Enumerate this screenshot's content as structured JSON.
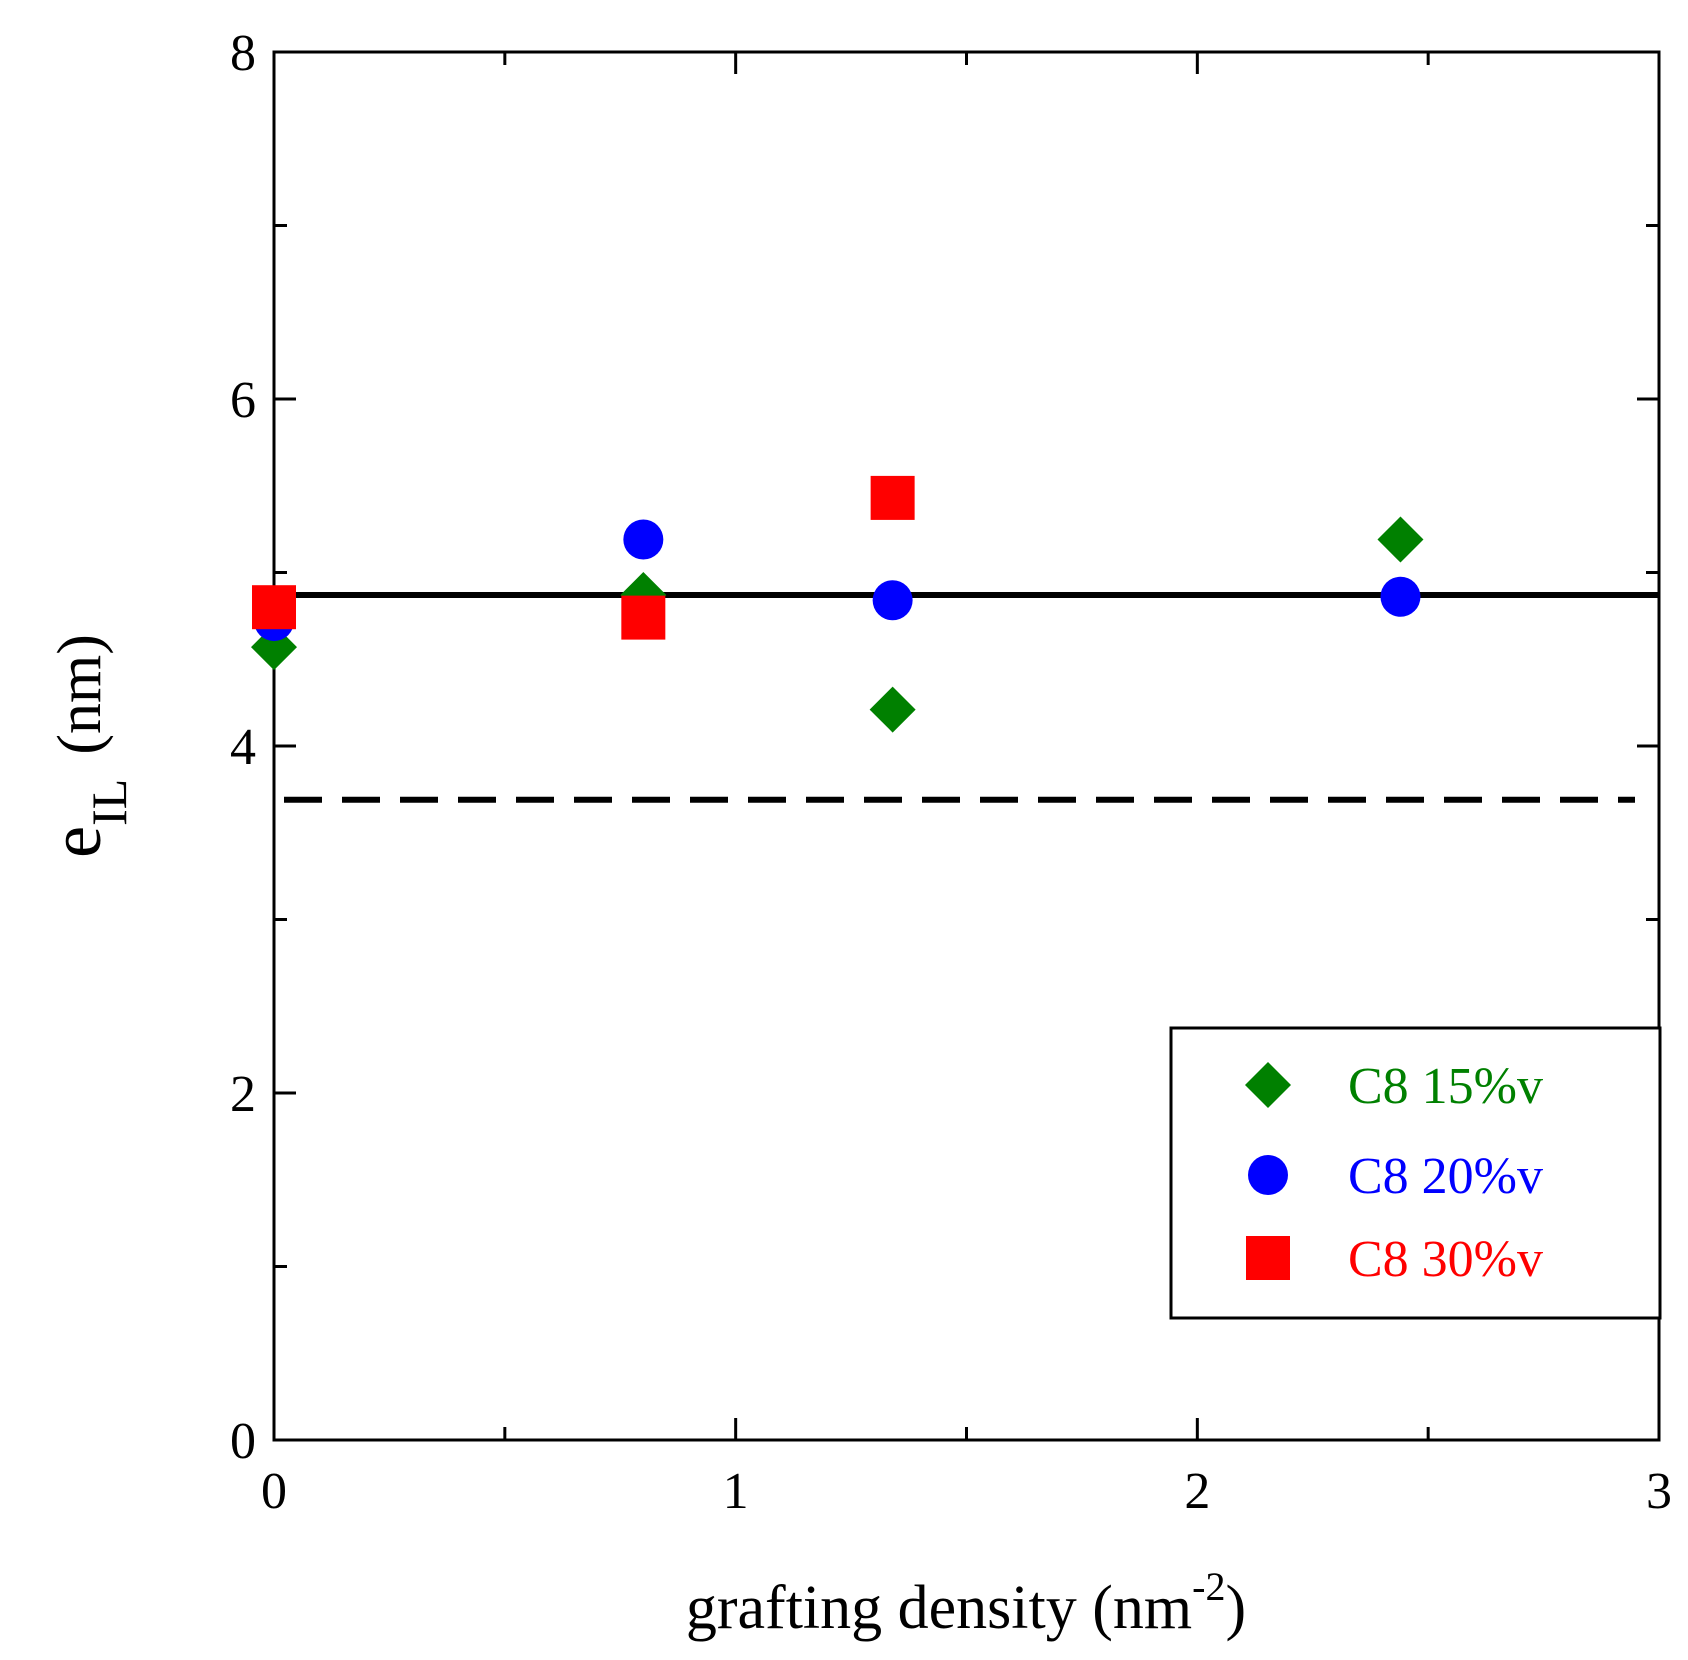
{
  "chart_data": {
    "type": "scatter",
    "xlabel": "grafting density (nm",
    "xlabel_sup": "-2",
    "xlabel_end": ")",
    "ylabel": "e",
    "ylabel_sub": "IL",
    "ylabel_end": "(nm)",
    "xlim": [
      0,
      3
    ],
    "ylim": [
      0,
      8
    ],
    "x_ticks": [
      0,
      1,
      2,
      3
    ],
    "x_tick_labels": [
      "0",
      "1",
      "2",
      "3"
    ],
    "x_minor_ticks": [
      0.5,
      1.5,
      2.5
    ],
    "y_ticks": [
      0,
      2,
      4,
      6,
      8
    ],
    "y_tick_labels": [
      "0",
      "2",
      "4",
      "6",
      "8"
    ],
    "y_minor_ticks": [
      1,
      3,
      5,
      7
    ],
    "grid": false,
    "legend_position": "bottom-right",
    "series": [
      {
        "name": "C8 15%v",
        "marker": "diamond",
        "color": "#008000",
        "x": [
          0.0,
          0.8,
          1.34,
          2.44
        ],
        "y": [
          4.57,
          4.87,
          4.21,
          5.19
        ]
      },
      {
        "name": "C8 20%v",
        "marker": "circle",
        "color": "#0000ff",
        "x": [
          0.0,
          0.8,
          1.34,
          2.44
        ],
        "y": [
          4.72,
          5.19,
          4.84,
          4.86
        ]
      },
      {
        "name": "C8 30%v",
        "marker": "square",
        "color": "#ff0000",
        "x": [
          0.0,
          0.8,
          1.34
        ],
        "y": [
          4.8,
          4.74,
          5.43
        ]
      }
    ],
    "reference_lines": [
      {
        "style": "solid",
        "y": 4.87,
        "color": "#000000"
      },
      {
        "style": "dashed",
        "y": 3.69,
        "color": "#000000"
      }
    ]
  }
}
